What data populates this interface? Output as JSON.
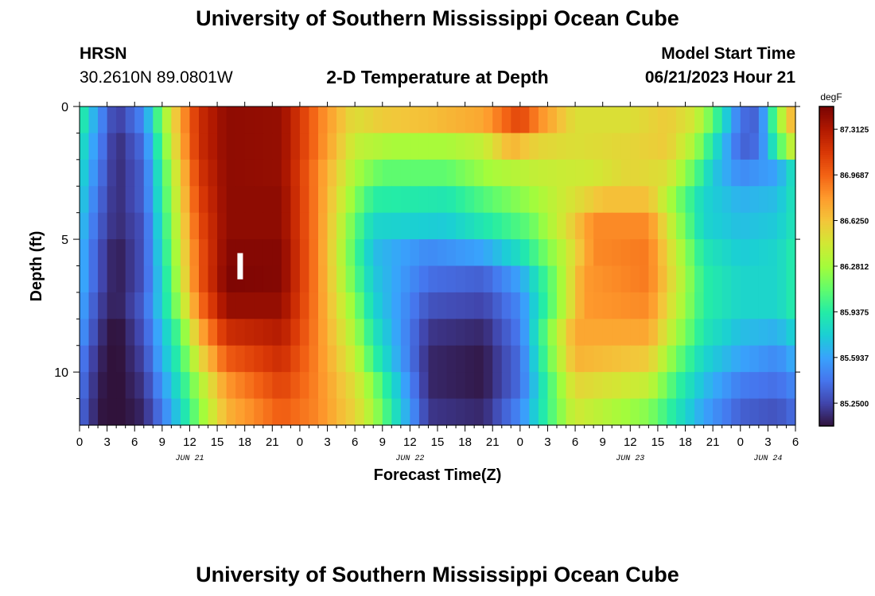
{
  "page": {
    "title_top": "University of Southern Mississippi Ocean Cube",
    "title_bottom": "University of Southern Mississippi Ocean Cube",
    "station_name": "HRSN",
    "station_coords": "30.2610N  89.0801W",
    "plot_title": "2-D Temperature at Depth",
    "model_start_label": "Model Start Time",
    "model_start_value": "06/21/2023 Hour 21"
  },
  "chart_data": {
    "type": "heatmap",
    "title": "2-D Temperature at Depth",
    "xlabel": "Forecast Time(Z)",
    "ylabel": "Depth (ft)",
    "x_unit": "hours since 2023-06-21 00Z",
    "xlim": [
      0,
      78
    ],
    "ylim": [
      0,
      12
    ],
    "y_inverted": true,
    "x_tick_values": [
      0,
      3,
      6,
      9,
      12,
      15,
      18,
      21,
      24,
      27,
      30,
      33,
      36,
      39,
      42,
      45,
      48,
      51,
      54,
      57,
      60,
      63,
      66,
      69,
      72,
      75,
      78
    ],
    "x_tick_labels": [
      "0",
      "3",
      "6",
      "9",
      "12",
      "15",
      "18",
      "21",
      "0",
      "3",
      "6",
      "9",
      "12",
      "15",
      "18",
      "21",
      "0",
      "3",
      "6",
      "9",
      "12",
      "15",
      "18",
      "21",
      "0",
      "3",
      "6"
    ],
    "day_labels": [
      {
        "x": 12,
        "label": "JUN 21"
      },
      {
        "x": 36,
        "label": "JUN 22"
      },
      {
        "x": 60,
        "label": "JUN 23"
      },
      {
        "x": 75,
        "label": "JUN 24"
      }
    ],
    "y_tick_values": [
      0,
      5,
      10
    ],
    "y_tick_labels": [
      "0",
      "5",
      "10"
    ],
    "colorbar": {
      "unit": "degF",
      "min": 85.078,
      "max": 87.484,
      "tick_values": [
        85.25,
        85.5937,
        85.9375,
        86.2812,
        86.625,
        86.9687,
        87.3125
      ],
      "tick_labels": [
        "85.2500",
        "85.5937",
        "85.9375",
        "86.2812",
        "86.6250",
        "86.9687",
        "87.3125"
      ],
      "colormap": [
        "#30123b",
        "#4145ab",
        "#4675ed",
        "#39a2fc",
        "#1bcfd4",
        "#24eca6",
        "#61fc6c",
        "#a4fc3b",
        "#d1e834",
        "#f3c63a",
        "#fe9b2d",
        "#f36315",
        "#d93806",
        "#b11901",
        "#7a0403"
      ]
    },
    "depths": [
      0.5,
      1.5,
      2.5,
      3.5,
      4.5,
      5.5,
      6.5,
      7.5,
      8.5,
      9.5,
      10.5,
      11.5
    ],
    "x_step_hours": 1,
    "marker": {
      "type": "now",
      "x": 17.5,
      "depth": 6.0
    },
    "temperature_model": "values in degF reconstructed from color: piecewise-linear in time per depth row",
    "row_keyframes": [
      {
        "depth": 0.5,
        "points": [
          [
            0,
            86.0
          ],
          [
            2,
            85.55
          ],
          [
            4,
            85.2
          ],
          [
            7,
            85.5
          ],
          [
            9,
            86.2
          ],
          [
            11,
            86.75
          ],
          [
            13,
            87.2
          ],
          [
            16,
            87.42
          ],
          [
            22,
            87.4
          ],
          [
            26,
            86.9
          ],
          [
            30,
            86.5
          ],
          [
            33,
            86.6
          ],
          [
            38,
            86.65
          ],
          [
            44,
            86.75
          ],
          [
            48,
            87.1
          ],
          [
            50,
            86.85
          ],
          [
            54,
            86.5
          ],
          [
            60,
            86.5
          ],
          [
            64,
            86.6
          ],
          [
            67,
            86.45
          ],
          [
            69,
            86.1
          ],
          [
            72,
            85.4
          ],
          [
            74,
            85.35
          ],
          [
            76,
            86.2
          ],
          [
            78,
            86.8
          ]
        ]
      },
      {
        "depth": 1.5,
        "points": [
          [
            0,
            85.9
          ],
          [
            2,
            85.5
          ],
          [
            4,
            85.15
          ],
          [
            7,
            85.4
          ],
          [
            9,
            86.1
          ],
          [
            11,
            86.7
          ],
          [
            13,
            87.2
          ],
          [
            16,
            87.42
          ],
          [
            22,
            87.4
          ],
          [
            26,
            86.9
          ],
          [
            30,
            86.4
          ],
          [
            34,
            86.3
          ],
          [
            40,
            86.3
          ],
          [
            44,
            86.4
          ],
          [
            47,
            86.7
          ],
          [
            50,
            86.55
          ],
          [
            54,
            86.5
          ],
          [
            60,
            86.55
          ],
          [
            64,
            86.6
          ],
          [
            67,
            86.3
          ],
          [
            69,
            85.9
          ],
          [
            72,
            85.35
          ],
          [
            74,
            85.4
          ],
          [
            76,
            86.0
          ],
          [
            78,
            86.5
          ]
        ]
      },
      {
        "depth": 2.5,
        "points": [
          [
            0,
            85.85
          ],
          [
            2,
            85.45
          ],
          [
            4,
            85.15
          ],
          [
            7,
            85.35
          ],
          [
            9,
            86.0
          ],
          [
            11,
            86.6
          ],
          [
            13,
            87.15
          ],
          [
            16,
            87.42
          ],
          [
            22,
            87.4
          ],
          [
            26,
            86.85
          ],
          [
            30,
            86.3
          ],
          [
            33,
            86.1
          ],
          [
            40,
            86.1
          ],
          [
            45,
            86.3
          ],
          [
            50,
            86.4
          ],
          [
            56,
            86.45
          ],
          [
            60,
            86.55
          ],
          [
            64,
            86.5
          ],
          [
            67,
            86.1
          ],
          [
            69,
            85.75
          ],
          [
            72,
            85.5
          ],
          [
            76,
            85.6
          ],
          [
            78,
            85.9
          ]
        ]
      },
      {
        "depth": 3.5,
        "points": [
          [
            0,
            85.8
          ],
          [
            2,
            85.4
          ],
          [
            4,
            85.15
          ],
          [
            7,
            85.35
          ],
          [
            9,
            85.95
          ],
          [
            11,
            86.55
          ],
          [
            13,
            87.1
          ],
          [
            16,
            87.42
          ],
          [
            22,
            87.42
          ],
          [
            26,
            86.85
          ],
          [
            30,
            86.2
          ],
          [
            32,
            85.95
          ],
          [
            40,
            85.9
          ],
          [
            45,
            86.1
          ],
          [
            49,
            86.25
          ],
          [
            54,
            86.5
          ],
          [
            57,
            86.65
          ],
          [
            62,
            86.65
          ],
          [
            65,
            86.2
          ],
          [
            68,
            85.8
          ],
          [
            72,
            85.65
          ],
          [
            76,
            85.7
          ],
          [
            78,
            85.9
          ]
        ]
      },
      {
        "depth": 4.5,
        "points": [
          [
            0,
            85.75
          ],
          [
            2,
            85.35
          ],
          [
            4,
            85.15
          ],
          [
            7,
            85.3
          ],
          [
            9,
            85.9
          ],
          [
            11,
            86.5
          ],
          [
            13,
            87.05
          ],
          [
            16,
            87.42
          ],
          [
            22,
            87.42
          ],
          [
            26,
            86.85
          ],
          [
            30,
            86.1
          ],
          [
            32,
            85.8
          ],
          [
            40,
            85.75
          ],
          [
            44,
            85.9
          ],
          [
            49,
            86.1
          ],
          [
            53,
            86.5
          ],
          [
            56,
            86.85
          ],
          [
            62,
            86.85
          ],
          [
            65,
            86.3
          ],
          [
            68,
            85.8
          ],
          [
            72,
            85.7
          ],
          [
            76,
            85.75
          ],
          [
            78,
            85.9
          ]
        ]
      },
      {
        "depth": 5.5,
        "points": [
          [
            0,
            85.7
          ],
          [
            2,
            85.3
          ],
          [
            4,
            85.1
          ],
          [
            7,
            85.3
          ],
          [
            9,
            85.85
          ],
          [
            11,
            86.45
          ],
          [
            13,
            87.0
          ],
          [
            16,
            87.45
          ],
          [
            22,
            87.45
          ],
          [
            26,
            86.85
          ],
          [
            30,
            86.05
          ],
          [
            32,
            85.7
          ],
          [
            38,
            85.5
          ],
          [
            44,
            85.6
          ],
          [
            48,
            85.85
          ],
          [
            53,
            86.4
          ],
          [
            56,
            86.85
          ],
          [
            62,
            86.9
          ],
          [
            65,
            86.4
          ],
          [
            68,
            85.9
          ],
          [
            72,
            85.75
          ],
          [
            76,
            85.8
          ],
          [
            78,
            85.95
          ]
        ]
      },
      {
        "depth": 6.5,
        "points": [
          [
            0,
            85.7
          ],
          [
            2,
            85.3
          ],
          [
            4,
            85.1
          ],
          [
            7,
            85.3
          ],
          [
            9,
            85.8
          ],
          [
            11,
            86.4
          ],
          [
            13,
            87.0
          ],
          [
            16,
            87.47
          ],
          [
            22,
            87.45
          ],
          [
            26,
            86.85
          ],
          [
            30,
            86.1
          ],
          [
            32,
            85.75
          ],
          [
            38,
            85.4
          ],
          [
            44,
            85.35
          ],
          [
            48,
            85.6
          ],
          [
            52,
            86.2
          ],
          [
            55,
            86.8
          ],
          [
            62,
            86.9
          ],
          [
            65,
            86.45
          ],
          [
            68,
            85.95
          ],
          [
            72,
            85.8
          ],
          [
            76,
            85.8
          ],
          [
            78,
            85.95
          ]
        ]
      },
      {
        "depth": 7.5,
        "points": [
          [
            0,
            85.65
          ],
          [
            2,
            85.25
          ],
          [
            4,
            85.1
          ],
          [
            7,
            85.35
          ],
          [
            9,
            85.8
          ],
          [
            11,
            86.3
          ],
          [
            13,
            86.9
          ],
          [
            16,
            87.4
          ],
          [
            22,
            87.4
          ],
          [
            26,
            86.85
          ],
          [
            30,
            86.2
          ],
          [
            32,
            85.8
          ],
          [
            38,
            85.3
          ],
          [
            44,
            85.25
          ],
          [
            48,
            85.5
          ],
          [
            52,
            86.2
          ],
          [
            55,
            86.8
          ],
          [
            62,
            86.85
          ],
          [
            65,
            86.4
          ],
          [
            68,
            85.95
          ],
          [
            72,
            85.8
          ],
          [
            76,
            85.8
          ],
          [
            78,
            85.95
          ]
        ]
      },
      {
        "depth": 8.5,
        "points": [
          [
            0,
            85.6
          ],
          [
            2,
            85.2
          ],
          [
            4,
            85.05
          ],
          [
            7,
            85.3
          ],
          [
            9,
            85.7
          ],
          [
            11,
            86.1
          ],
          [
            13,
            86.7
          ],
          [
            16,
            87.2
          ],
          [
            22,
            87.3
          ],
          [
            26,
            86.85
          ],
          [
            30,
            86.3
          ],
          [
            32,
            85.9
          ],
          [
            38,
            85.2
          ],
          [
            44,
            85.15
          ],
          [
            48,
            85.45
          ],
          [
            51,
            86.15
          ],
          [
            54,
            86.75
          ],
          [
            62,
            86.75
          ],
          [
            65,
            86.3
          ],
          [
            68,
            85.9
          ],
          [
            72,
            85.7
          ],
          [
            76,
            85.65
          ],
          [
            78,
            85.8
          ]
        ]
      },
      {
        "depth": 9.5,
        "points": [
          [
            0,
            85.5
          ],
          [
            2,
            85.15
          ],
          [
            4,
            85.05
          ],
          [
            7,
            85.25
          ],
          [
            9,
            85.65
          ],
          [
            11,
            86.0
          ],
          [
            13,
            86.5
          ],
          [
            16,
            87.0
          ],
          [
            22,
            87.2
          ],
          [
            26,
            86.85
          ],
          [
            30,
            86.4
          ],
          [
            32,
            86.0
          ],
          [
            38,
            85.15
          ],
          [
            44,
            85.1
          ],
          [
            48,
            85.4
          ],
          [
            51,
            86.1
          ],
          [
            54,
            86.7
          ],
          [
            62,
            86.6
          ],
          [
            65,
            86.15
          ],
          [
            68,
            85.8
          ],
          [
            72,
            85.6
          ],
          [
            76,
            85.5
          ],
          [
            78,
            85.65
          ]
        ]
      },
      {
        "depth": 10.5,
        "points": [
          [
            0,
            85.45
          ],
          [
            2,
            85.12
          ],
          [
            4,
            85.05
          ],
          [
            7,
            85.2
          ],
          [
            9,
            85.55
          ],
          [
            11,
            85.9
          ],
          [
            13,
            86.3
          ],
          [
            16,
            86.8
          ],
          [
            22,
            87.1
          ],
          [
            26,
            86.85
          ],
          [
            30,
            86.5
          ],
          [
            32,
            86.2
          ],
          [
            38,
            85.15
          ],
          [
            44,
            85.1
          ],
          [
            48,
            85.4
          ],
          [
            51,
            86.0
          ],
          [
            54,
            86.55
          ],
          [
            62,
            86.4
          ],
          [
            65,
            86.0
          ],
          [
            68,
            85.7
          ],
          [
            72,
            85.45
          ],
          [
            76,
            85.4
          ],
          [
            78,
            85.5
          ]
        ]
      },
      {
        "depth": 11.5,
        "points": [
          [
            0,
            85.4
          ],
          [
            2,
            85.1
          ],
          [
            4,
            85.05
          ],
          [
            7,
            85.15
          ],
          [
            9,
            85.45
          ],
          [
            11,
            85.8
          ],
          [
            13,
            86.2
          ],
          [
            16,
            86.7
          ],
          [
            22,
            87.0
          ],
          [
            26,
            86.85
          ],
          [
            30,
            86.55
          ],
          [
            32,
            86.3
          ],
          [
            38,
            85.2
          ],
          [
            44,
            85.15
          ],
          [
            48,
            85.5
          ],
          [
            51,
            86.0
          ],
          [
            54,
            86.45
          ],
          [
            62,
            86.2
          ],
          [
            65,
            85.9
          ],
          [
            68,
            85.6
          ],
          [
            72,
            85.35
          ],
          [
            76,
            85.3
          ],
          [
            78,
            85.4
          ]
        ]
      }
    ]
  }
}
